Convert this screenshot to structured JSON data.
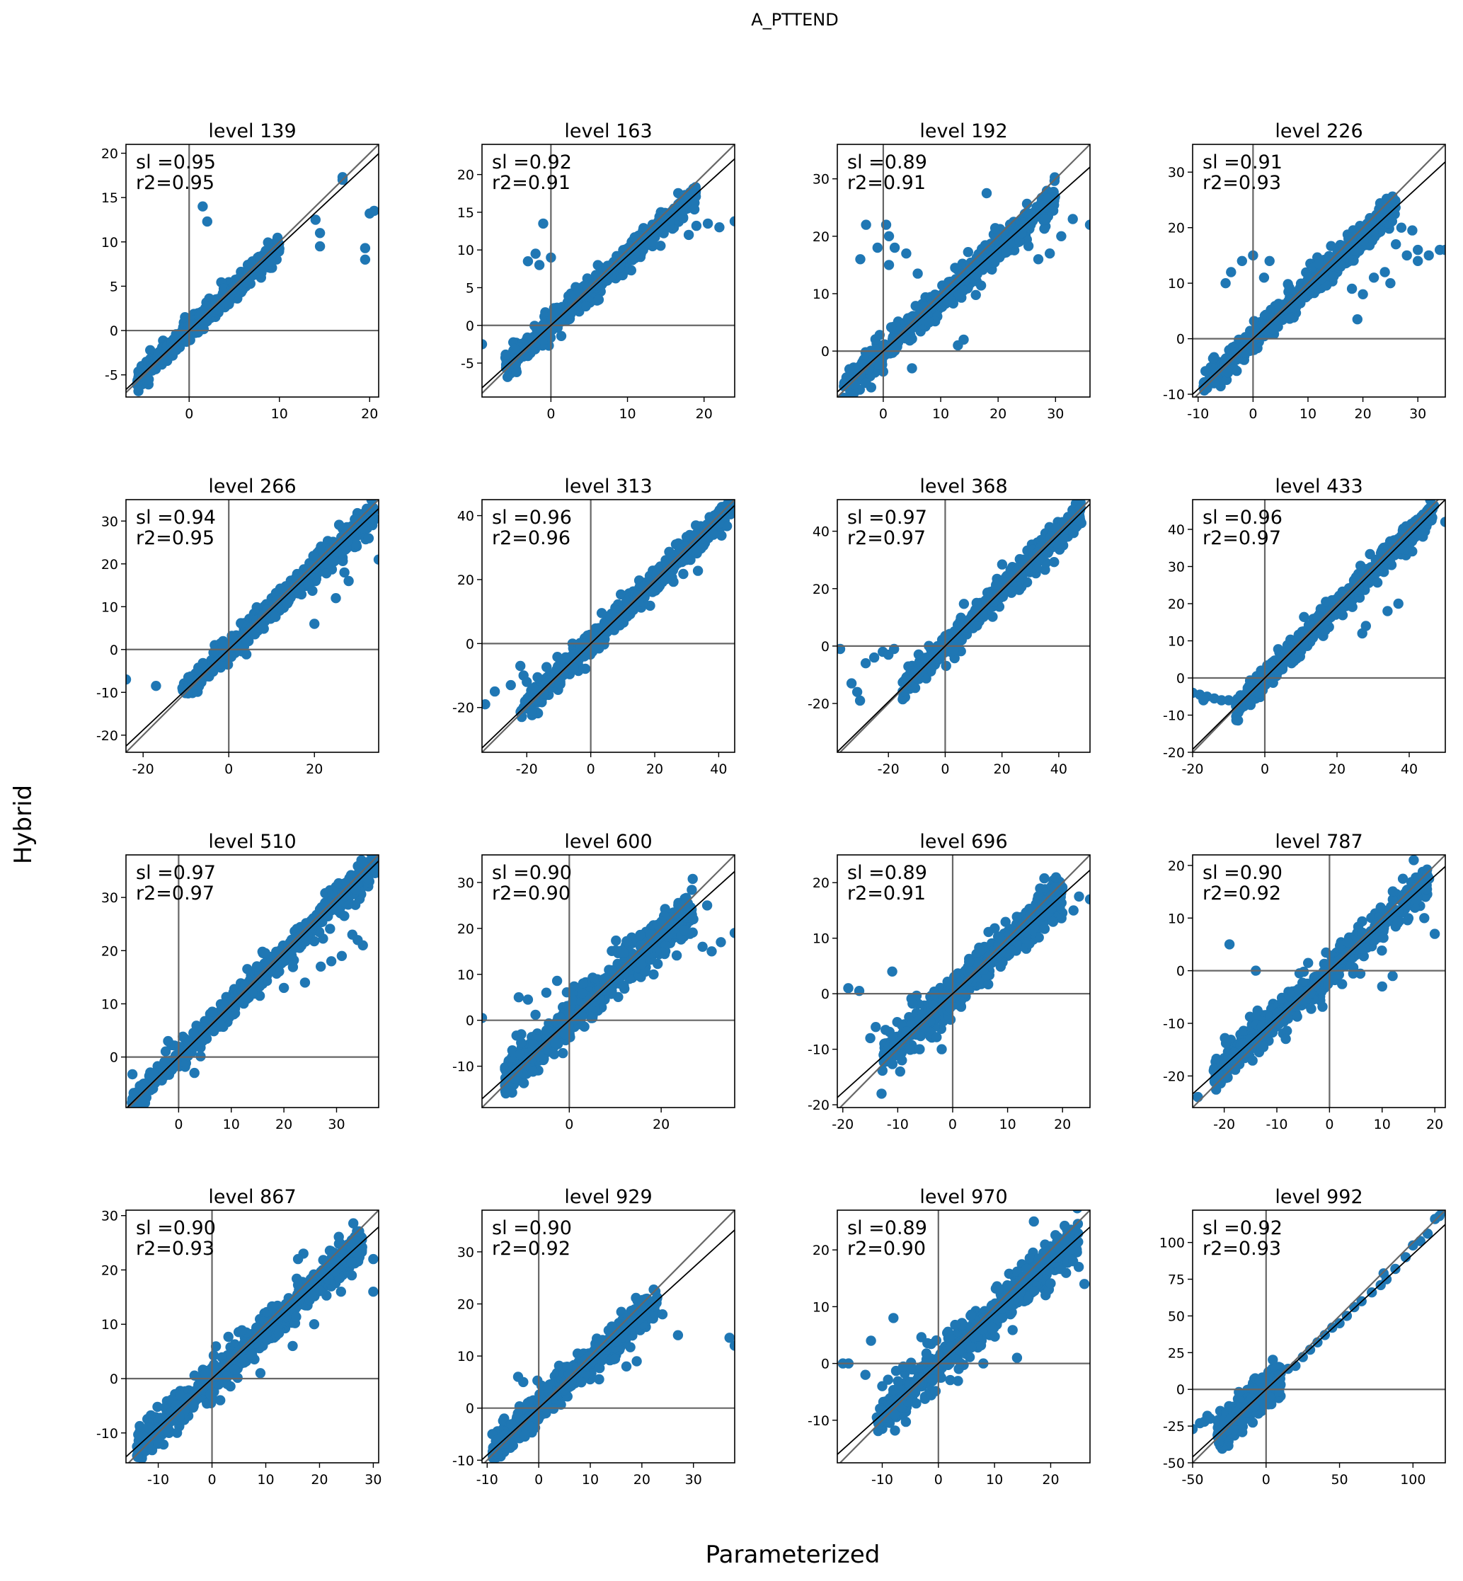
{
  "figure": {
    "suptitle": "A_PTTEND",
    "xlabel": "Parameterized",
    "ylabel": "Hybrid"
  },
  "colors": {
    "points": "#1f77b4",
    "zero_lines": "#666666",
    "identity_line": "#666666",
    "fit_line": "#000000",
    "frame": "#000000"
  },
  "chart_data": [
    {
      "type": "scatter",
      "title": "level 139",
      "annotation": [
        "sl =0.95",
        "r2=0.95"
      ],
      "xlim": [
        -7,
        21
      ],
      "ylim": [
        -7.5,
        21
      ],
      "xticks": [
        0,
        10,
        20
      ],
      "yticks": [
        -5,
        0,
        5,
        10,
        15,
        20
      ],
      "slope": 0.95,
      "r2": 0.95,
      "cluster": {
        "x": [
          -6,
          10
        ],
        "spread": 0.55
      },
      "outliers": [
        [
          17,
          17.3
        ],
        [
          17,
          17
        ],
        [
          20,
          13.2
        ],
        [
          20.5,
          13.5
        ],
        [
          19.5,
          9.3
        ],
        [
          19.5,
          8
        ],
        [
          14,
          12.5
        ],
        [
          14.5,
          11
        ],
        [
          14.5,
          9.5
        ],
        [
          2,
          12.3
        ],
        [
          1.5,
          14
        ],
        [
          9,
          7.8
        ]
      ]
    },
    {
      "type": "scatter",
      "title": "level 163",
      "annotation": [
        "sl =0.92",
        "r2=0.91"
      ],
      "xlim": [
        -9,
        24
      ],
      "ylim": [
        -9.5,
        24
      ],
      "xticks": [
        0,
        10,
        20
      ],
      "yticks": [
        -5,
        0,
        5,
        10,
        15,
        20
      ],
      "slope": 0.92,
      "r2": 0.91,
      "cluster": {
        "x": [
          -6,
          19
        ],
        "spread": 0.8
      },
      "outliers": [
        [
          -1,
          13.5
        ],
        [
          0,
          9
        ],
        [
          -2,
          9.5
        ],
        [
          -3,
          8.5
        ],
        [
          -1.5,
          8
        ],
        [
          24,
          13.8
        ],
        [
          22,
          13
        ],
        [
          20.5,
          13.5
        ],
        [
          18,
          12
        ],
        [
          19,
          13.2
        ],
        [
          -9,
          -2.5
        ]
      ]
    },
    {
      "type": "scatter",
      "title": "level 192",
      "annotation": [
        "sl =0.89",
        "r2=0.91"
      ],
      "xlim": [
        -8,
        36
      ],
      "ylim": [
        -8,
        36
      ],
      "xticks": [
        0,
        10,
        20,
        30
      ],
      "yticks": [
        0,
        10,
        20,
        30
      ],
      "slope": 0.89,
      "r2": 0.91,
      "cluster": {
        "x": [
          -7,
          30
        ],
        "spread": 1.2
      },
      "outliers": [
        [
          -3,
          22
        ],
        [
          0.5,
          22
        ],
        [
          1,
          20
        ],
        [
          2,
          18
        ],
        [
          -1,
          18
        ],
        [
          1,
          15
        ],
        [
          -4,
          16
        ],
        [
          4,
          17
        ],
        [
          6,
          13.5
        ],
        [
          18,
          27.5
        ],
        [
          29,
          17
        ],
        [
          27,
          16
        ],
        [
          31,
          20
        ],
        [
          33,
          23
        ],
        [
          36,
          22
        ],
        [
          14,
          2
        ],
        [
          5,
          -3
        ],
        [
          13,
          1
        ],
        [
          8,
          5
        ]
      ]
    },
    {
      "type": "scatter",
      "title": "level 226",
      "annotation": [
        "sl =0.91",
        "r2=0.93"
      ],
      "xlim": [
        -11,
        35
      ],
      "ylim": [
        -10.5,
        35
      ],
      "xticks": [
        -10,
        0,
        10,
        20,
        30
      ],
      "yticks": [
        -10,
        0,
        10,
        20,
        30
      ],
      "slope": 0.91,
      "r2": 0.93,
      "cluster": {
        "x": [
          -9,
          26
        ],
        "spread": 1.2
      },
      "outliers": [
        [
          0,
          15
        ],
        [
          -2,
          14
        ],
        [
          -4,
          12
        ],
        [
          -5,
          10
        ],
        [
          2,
          11
        ],
        [
          3,
          14
        ],
        [
          28,
          15
        ],
        [
          30,
          16
        ],
        [
          32,
          15
        ],
        [
          34,
          16
        ],
        [
          26,
          17
        ],
        [
          35,
          16
        ],
        [
          30,
          14
        ],
        [
          24,
          12
        ],
        [
          22,
          11
        ],
        [
          25,
          10
        ],
        [
          20,
          8
        ],
        [
          18,
          9
        ],
        [
          27,
          20
        ],
        [
          29,
          19.5
        ],
        [
          19,
          3.5
        ]
      ]
    },
    {
      "type": "scatter",
      "title": "level 266",
      "annotation": [
        "sl =0.94",
        "r2=0.95"
      ],
      "xlim": [
        -24,
        35
      ],
      "ylim": [
        -24,
        35
      ],
      "xticks": [
        -20,
        0,
        20
      ],
      "yticks": [
        -20,
        -10,
        0,
        10,
        20,
        30
      ],
      "slope": 0.94,
      "r2": 0.95,
      "cluster": {
        "x": [
          -11,
          34
        ],
        "spread": 1.4
      },
      "outliers": [
        [
          -24,
          -7
        ],
        [
          -17,
          -8.5
        ],
        [
          35,
          21
        ],
        [
          27,
          18
        ],
        [
          28,
          16
        ],
        [
          20,
          6
        ],
        [
          25,
          12
        ]
      ]
    },
    {
      "type": "scatter",
      "title": "level 313",
      "annotation": [
        "sl =0.96",
        "r2=0.96"
      ],
      "xlim": [
        -34,
        45
      ],
      "ylim": [
        -34,
        45
      ],
      "xticks": [
        -20,
        0,
        20,
        40
      ],
      "yticks": [
        -20,
        0,
        20,
        40
      ],
      "slope": 0.96,
      "r2": 0.96,
      "cluster": {
        "x": [
          -22,
          44
        ],
        "spread": 1.9
      },
      "outliers": [
        [
          -33,
          -19
        ],
        [
          -30,
          -15
        ],
        [
          -22,
          -7
        ],
        [
          -21,
          -10
        ],
        [
          -25,
          -13
        ],
        [
          -20,
          -12
        ],
        [
          -18,
          -14
        ]
      ]
    },
    {
      "type": "scatter",
      "title": "level 368",
      "annotation": [
        "sl =0.97",
        "r2=0.97"
      ],
      "xlim": [
        -38,
        51
      ],
      "ylim": [
        -37,
        51
      ],
      "xticks": [
        -20,
        0,
        20,
        40
      ],
      "yticks": [
        -20,
        0,
        20,
        40
      ],
      "slope": 0.97,
      "r2": 0.97,
      "cluster": {
        "x": [
          -15,
          48
        ],
        "spread": 2.2
      },
      "outliers": [
        [
          -33,
          -13
        ],
        [
          -31,
          -16
        ],
        [
          -30,
          -19
        ],
        [
          -28,
          -6
        ],
        [
          -25,
          -4
        ],
        [
          -22,
          -2
        ],
        [
          -20,
          -3
        ],
        [
          -18,
          -1
        ],
        [
          -37,
          -1
        ]
      ]
    },
    {
      "type": "scatter",
      "title": "level 433",
      "annotation": [
        "sl =0.96",
        "r2=0.97"
      ],
      "xlim": [
        -20,
        50
      ],
      "ylim": [
        -20,
        48
      ],
      "xticks": [
        -20,
        0,
        20,
        40
      ],
      "yticks": [
        -20,
        -10,
        0,
        10,
        20,
        30,
        40
      ],
      "slope": 0.96,
      "r2": 0.97,
      "cluster": {
        "x": [
          -8,
          47
        ],
        "spread": 1.6
      },
      "outliers": [
        [
          -20,
          -4
        ],
        [
          -18,
          -4.5
        ],
        [
          -16,
          -5
        ],
        [
          -14,
          -5.5
        ],
        [
          -12,
          -6
        ],
        [
          -10,
          -6
        ],
        [
          -17,
          -6
        ],
        [
          50,
          42
        ],
        [
          27,
          12
        ],
        [
          34,
          18
        ],
        [
          37,
          20
        ],
        [
          28,
          14
        ]
      ]
    },
    {
      "type": "scatter",
      "title": "level 510",
      "annotation": [
        "sl =0.97",
        "r2=0.97"
      ],
      "xlim": [
        -10,
        38
      ],
      "ylim": [
        -9.5,
        38
      ],
      "xticks": [
        0,
        10,
        20,
        30
      ],
      "yticks": [
        0,
        10,
        20,
        30
      ],
      "slope": 0.97,
      "r2": 0.97,
      "cluster": {
        "x": [
          -9,
          38
        ],
        "spread": 1.3
      },
      "outliers": [
        [
          35,
          21
        ],
        [
          34,
          22
        ],
        [
          29,
          18
        ],
        [
          31,
          19
        ],
        [
          24,
          14
        ],
        [
          20,
          13
        ],
        [
          33,
          23
        ],
        [
          27,
          17
        ],
        [
          -2,
          3
        ],
        [
          3,
          -3
        ]
      ]
    },
    {
      "type": "scatter",
      "title": "level 600",
      "annotation": [
        "sl =0.90",
        "r2=0.90"
      ],
      "xlim": [
        -19,
        36
      ],
      "ylim": [
        -19,
        36
      ],
      "xticks": [
        0,
        20
      ],
      "yticks": [
        -10,
        0,
        10,
        20,
        30
      ],
      "slope": 0.9,
      "r2": 0.9,
      "cluster": {
        "x": [
          -14,
          27
        ],
        "spread": 2.2
      },
      "outliers": [
        [
          -19,
          0.5
        ],
        [
          -11,
          5
        ],
        [
          -9,
          4.5
        ],
        [
          -5,
          6
        ],
        [
          -3,
          -5
        ],
        [
          -1,
          -3
        ],
        [
          29,
          16
        ],
        [
          33,
          17
        ],
        [
          36,
          19
        ],
        [
          31,
          15
        ],
        [
          27,
          22
        ],
        [
          30,
          25
        ]
      ]
    },
    {
      "type": "scatter",
      "title": "level 696",
      "annotation": [
        "sl =0.89",
        "r2=0.91"
      ],
      "xlim": [
        -21,
        25
      ],
      "ylim": [
        -20.5,
        25
      ],
      "xticks": [
        -20,
        -10,
        0,
        10,
        20
      ],
      "yticks": [
        -20,
        -10,
        0,
        10,
        20
      ],
      "slope": 0.89,
      "r2": 0.91,
      "cluster": {
        "x": [
          -13,
          20
        ],
        "spread": 1.8
      },
      "outliers": [
        [
          -19,
          1
        ],
        [
          -17,
          0.5
        ],
        [
          -14,
          -6
        ],
        [
          -15,
          -8
        ],
        [
          23,
          17.5
        ],
        [
          25,
          17
        ],
        [
          22,
          15
        ],
        [
          -6,
          -10
        ],
        [
          -2,
          -10
        ],
        [
          -11,
          4
        ]
      ]
    },
    {
      "type": "scatter",
      "title": "level 787",
      "annotation": [
        "sl =0.90",
        "r2=0.92"
      ],
      "xlim": [
        -26,
        22
      ],
      "ylim": [
        -26,
        22
      ],
      "xticks": [
        -20,
        -10,
        0,
        10,
        20
      ],
      "yticks": [
        -20,
        -10,
        0,
        10,
        20
      ],
      "slope": 0.9,
      "r2": 0.92,
      "cluster": {
        "x": [
          -22,
          19
        ],
        "spread": 1.5
      },
      "outliers": [
        [
          -19,
          5
        ],
        [
          -15,
          -13
        ],
        [
          -20,
          -17
        ],
        [
          -22,
          -19
        ],
        [
          -25,
          -24
        ],
        [
          10,
          -3
        ],
        [
          12,
          -1
        ],
        [
          20,
          7
        ],
        [
          16,
          21
        ],
        [
          18,
          10
        ],
        [
          -14,
          0
        ]
      ]
    },
    {
      "type": "scatter",
      "title": "level 867",
      "annotation": [
        "sl =0.90",
        "r2=0.93"
      ],
      "xlim": [
        -16,
        31
      ],
      "ylim": [
        -15.5,
        31
      ],
      "xticks": [
        -10,
        0,
        10,
        20,
        30
      ],
      "yticks": [
        -10,
        0,
        10,
        20,
        30
      ],
      "slope": 0.9,
      "r2": 0.93,
      "cluster": {
        "x": [
          -14,
          28
        ],
        "spread": 1.6
      },
      "outliers": [
        [
          30,
          16
        ],
        [
          30,
          22
        ],
        [
          26,
          19
        ],
        [
          24,
          16
        ],
        [
          19,
          10
        ],
        [
          15,
          6
        ],
        [
          9,
          1
        ],
        [
          17,
          23
        ],
        [
          16,
          22
        ],
        [
          -10,
          -12
        ],
        [
          -8,
          -10
        ]
      ]
    },
    {
      "type": "scatter",
      "title": "level 929",
      "annotation": [
        "sl =0.90",
        "r2=0.92"
      ],
      "xlim": [
        -11,
        38
      ],
      "ylim": [
        -10.5,
        38
      ],
      "xticks": [
        -10,
        0,
        10,
        20,
        30
      ],
      "yticks": [
        -10,
        0,
        10,
        20,
        30
      ],
      "slope": 0.9,
      "r2": 0.92,
      "cluster": {
        "x": [
          -9,
          23
        ],
        "spread": 1.4
      },
      "outliers": [
        [
          37,
          13.5
        ],
        [
          38,
          12
        ],
        [
          27,
          14
        ],
        [
          22,
          20
        ],
        [
          21,
          21
        ],
        [
          24,
          18
        ],
        [
          -9,
          -5
        ],
        [
          -8,
          -6
        ],
        [
          -3,
          5
        ],
        [
          -4,
          6
        ],
        [
          17,
          8
        ],
        [
          19,
          9
        ]
      ]
    },
    {
      "type": "scatter",
      "title": "level 970",
      "annotation": [
        "sl =0.89",
        "r2=0.90"
      ],
      "xlim": [
        -18,
        27
      ],
      "ylim": [
        -17.5,
        27
      ],
      "xticks": [
        -10,
        0,
        10,
        20
      ],
      "yticks": [
        -10,
        0,
        10,
        20
      ],
      "slope": 0.89,
      "r2": 0.9,
      "cluster": {
        "x": [
          -11,
          25
        ],
        "spread": 1.7
      },
      "outliers": [
        [
          -17,
          0
        ],
        [
          -16,
          0
        ],
        [
          -12,
          4
        ],
        [
          -8,
          8
        ],
        [
          -13,
          -2
        ],
        [
          -10,
          -4
        ],
        [
          25,
          17
        ],
        [
          26,
          14
        ],
        [
          24,
          18
        ],
        [
          17,
          25
        ],
        [
          4,
          0
        ],
        [
          8,
          0
        ],
        [
          14,
          1
        ]
      ]
    },
    {
      "type": "scatter",
      "title": "level 992",
      "annotation": [
        "sl =0.92",
        "r2=0.93"
      ],
      "xlim": [
        -50,
        122
      ],
      "ylim": [
        -50,
        122
      ],
      "xticks": [
        -50,
        0,
        50,
        100
      ],
      "yticks": [
        -50,
        -25,
        0,
        25,
        50,
        75,
        100
      ],
      "slope": 0.92,
      "r2": 0.93,
      "cluster": {
        "x": [
          -33,
          10
        ],
        "spread": 5
      },
      "outliers": [
        [
          -50,
          -27
        ],
        [
          -45,
          -23
        ],
        [
          -40,
          -18
        ],
        [
          -42,
          -22
        ],
        [
          -38,
          -20
        ],
        [
          15,
          14
        ],
        [
          20,
          16
        ],
        [
          25,
          22
        ],
        [
          30,
          27
        ],
        [
          35,
          32
        ],
        [
          40,
          37
        ],
        [
          45,
          42
        ],
        [
          50,
          45
        ],
        [
          55,
          50
        ],
        [
          60,
          56
        ],
        [
          65,
          60
        ],
        [
          72,
          66
        ],
        [
          78,
          71
        ],
        [
          80,
          79
        ],
        [
          82,
          75
        ],
        [
          88,
          82
        ],
        [
          95,
          90
        ],
        [
          100,
          98
        ],
        [
          105,
          101
        ],
        [
          110,
          106
        ],
        [
          115,
          116
        ],
        [
          120,
          121
        ],
        [
          118,
          118
        ]
      ]
    }
  ]
}
